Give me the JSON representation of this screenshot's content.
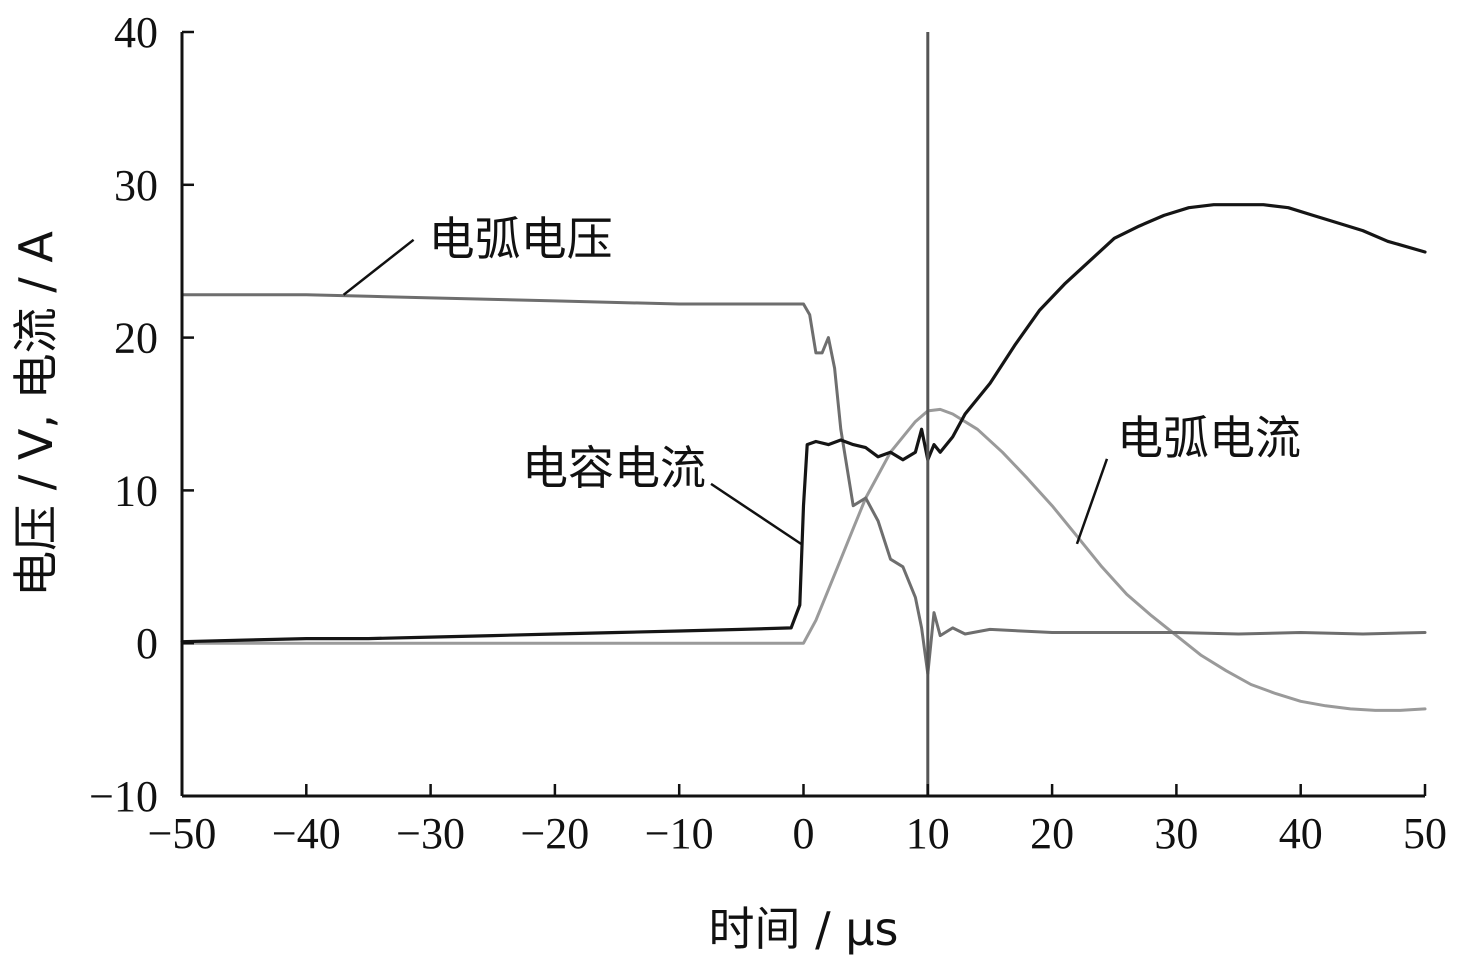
{
  "chart_data": {
    "type": "line",
    "title": "",
    "xlabel": "时间 / μs",
    "ylabel": "电压 / V, 电流 / A",
    "xlim": [
      -50,
      50
    ],
    "ylim": [
      -10,
      40
    ],
    "x_ticks": [
      -50,
      -40,
      -30,
      -20,
      -10,
      0,
      10,
      20,
      30,
      40,
      50
    ],
    "x_tick_labels": [
      "−50",
      "−40",
      "−30",
      "−20",
      "−10",
      "0",
      "10",
      "20",
      "30",
      "40",
      "50"
    ],
    "y_ticks": [
      -10,
      0,
      10,
      20,
      30,
      40
    ],
    "y_tick_labels": [
      "−10",
      "0",
      "10",
      "20",
      "30",
      "40"
    ],
    "grid": false,
    "legend": "none",
    "series": [
      {
        "name": "电弧电压",
        "color": "#6e6e6e",
        "x": [
          -50,
          -45,
          -40,
          -35,
          -30,
          -25,
          -20,
          -15,
          -10,
          -5,
          0,
          0.5,
          1,
          1.5,
          2,
          2.5,
          3,
          4,
          5,
          6,
          7,
          8,
          9,
          9.5,
          10,
          10.5,
          11,
          12,
          13,
          15,
          20,
          25,
          30,
          35,
          40,
          45,
          50
        ],
        "y": [
          22.8,
          22.8,
          22.8,
          22.7,
          22.6,
          22.5,
          22.4,
          22.3,
          22.2,
          22.2,
          22.2,
          21.5,
          19.0,
          19.0,
          20.0,
          18.0,
          14.0,
          9.0,
          9.5,
          8.0,
          5.5,
          5.0,
          3.0,
          1.0,
          -2.0,
          2.0,
          0.5,
          1.0,
          0.6,
          0.9,
          0.7,
          0.7,
          0.7,
          0.6,
          0.7,
          0.6,
          0.7
        ]
      },
      {
        "name": "电容电流",
        "color": "#151515",
        "x": [
          -50,
          -45,
          -40,
          -35,
          -30,
          -25,
          -20,
          -15,
          -10,
          -5,
          -1,
          -0.3,
          0,
          0.3,
          1,
          2,
          3,
          4,
          5,
          6,
          7,
          8,
          9,
          9.5,
          10,
          10.5,
          11,
          12,
          13,
          15,
          17,
          19,
          21,
          23,
          25,
          27,
          29,
          31,
          33,
          35,
          37,
          39,
          41,
          43,
          45,
          47,
          50
        ],
        "y": [
          0.1,
          0.2,
          0.3,
          0.3,
          0.4,
          0.5,
          0.6,
          0.7,
          0.8,
          0.9,
          1.0,
          2.5,
          9.0,
          13.0,
          13.2,
          13.0,
          13.3,
          13.0,
          12.8,
          12.2,
          12.5,
          12.0,
          12.5,
          14.0,
          12.0,
          13.0,
          12.5,
          13.5,
          15.0,
          17.0,
          19.5,
          21.8,
          23.5,
          25.0,
          26.5,
          27.3,
          28.0,
          28.5,
          28.7,
          28.7,
          28.7,
          28.5,
          28.0,
          27.5,
          27.0,
          26.3,
          25.6
        ]
      },
      {
        "name": "电弧电流",
        "color": "#9a9a9a",
        "x": [
          -50,
          -40,
          -30,
          -20,
          -10,
          -1,
          0,
          1,
          2,
          3,
          4,
          5,
          6,
          7,
          8,
          9,
          10,
          11,
          12,
          14,
          16,
          18,
          20,
          22,
          24,
          26,
          28,
          30,
          32,
          34,
          36,
          38,
          40,
          42,
          44,
          46,
          48,
          50
        ],
        "y": [
          0,
          0,
          0,
          0,
          0,
          0,
          0,
          1.5,
          3.5,
          5.5,
          7.5,
          9.5,
          11.0,
          12.5,
          13.5,
          14.5,
          15.2,
          15.3,
          15.0,
          14.0,
          12.5,
          10.8,
          9.0,
          7.0,
          5.0,
          3.2,
          1.8,
          0.5,
          -0.8,
          -1.8,
          -2.7,
          -3.3,
          -3.8,
          -4.1,
          -4.3,
          -4.4,
          -4.4,
          -4.3
        ]
      }
    ],
    "annotations": [
      {
        "text": "电弧电压",
        "series": "电弧电压",
        "point": [
          -37,
          22.8
        ]
      },
      {
        "text": "电容电流",
        "series": "电容电流",
        "point": [
          -0.2,
          6.5
        ]
      },
      {
        "text": "电弧电流",
        "series": "电弧电流",
        "point": [
          22,
          6.5
        ]
      }
    ]
  }
}
